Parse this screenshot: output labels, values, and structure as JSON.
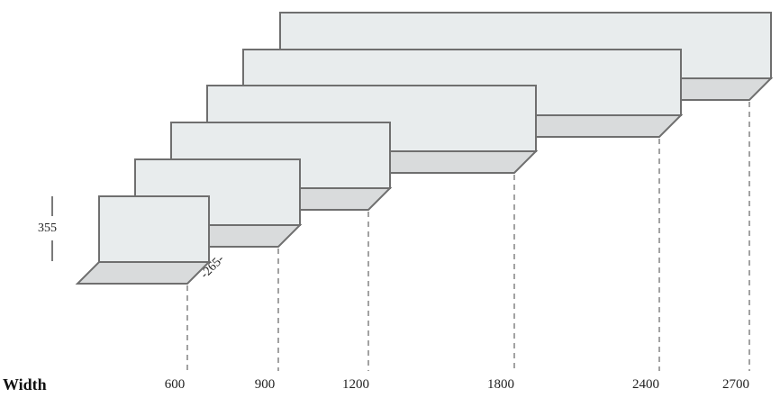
{
  "axis_title": "Width",
  "height_dimension": "355",
  "depth_dimension": "-265-",
  "shelves": [
    {
      "width_label": "600"
    },
    {
      "width_label": "900"
    },
    {
      "width_label": "1200"
    },
    {
      "width_label": "1800"
    },
    {
      "width_label": "2400"
    },
    {
      "width_label": "2700"
    }
  ],
  "colors": {
    "back_panel": "#e8eced",
    "bottom_panel": "#d9dbdc",
    "outline": "#6f6f6f",
    "dash": "#444444"
  }
}
